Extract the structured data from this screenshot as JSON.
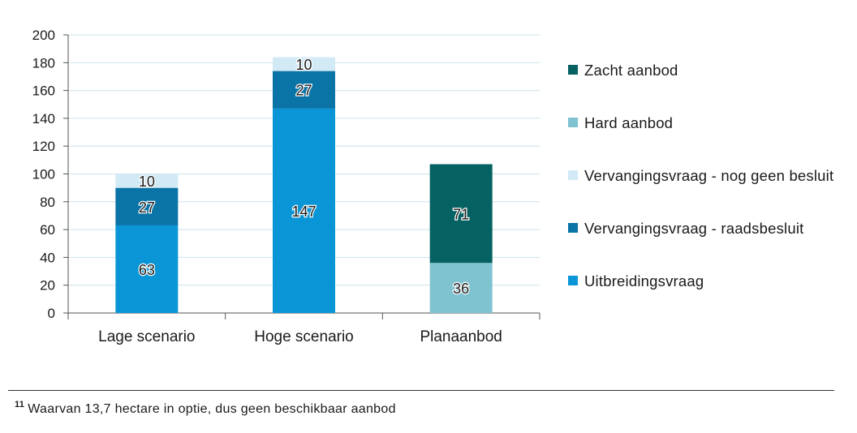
{
  "chart_data": {
    "type": "bar",
    "stacked": true,
    "categories": [
      "Lage scenario",
      "Hoge scenario",
      "Planaanbod"
    ],
    "ylim": [
      0,
      200
    ],
    "yticks": [
      0,
      20,
      40,
      60,
      80,
      100,
      120,
      140,
      160,
      180,
      200
    ],
    "grid": true,
    "legend_position": "right",
    "series": [
      {
        "name": "Uitbreidingsvraag",
        "color": "#0a96d6",
        "values": [
          63,
          147,
          0
        ]
      },
      {
        "name": "Vervangingsvraag - raadsbesluit",
        "color": "#0a74a6",
        "values": [
          27,
          27,
          0
        ]
      },
      {
        "name": "Vervangingsvraag - nog geen besluit",
        "color": "#d2eaf6",
        "values": [
          10,
          10,
          0
        ]
      },
      {
        "name": "Hard aanbod",
        "color": "#7fc3d1",
        "values": [
          0,
          0,
          36
        ]
      },
      {
        "name": "Zacht aanbod",
        "color": "#066262",
        "values": [
          0,
          0,
          71
        ]
      }
    ],
    "legend_order": [
      "Zacht aanbod",
      "Hard aanbod",
      "Vervangingsvraag - nog geen besluit",
      "Vervangingsvraag - raadsbesluit",
      "Uitbreidingsvraag"
    ]
  },
  "footnote": {
    "number": "11",
    "text": "Waarvan 13,7 hectare in optie, dus geen beschikbaar aanbod"
  }
}
